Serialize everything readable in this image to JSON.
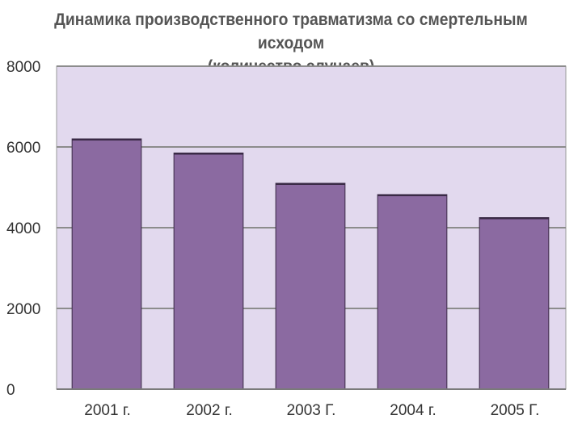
{
  "chart_data": {
    "type": "bar",
    "title": "Динамика производственного травматизма со смертельным исходом",
    "subtitle": "(количество случаев)",
    "categories": [
      "2001 г.",
      "2002 г.",
      "2003 Г.",
      "2004 г.",
      "2005 Г."
    ],
    "values": [
      6200,
      5850,
      5100,
      4820,
      4250
    ],
    "yticks": [
      "0",
      "2000",
      "4000",
      "6000",
      "8000"
    ],
    "ylim": [
      0,
      8000
    ],
    "grid": true,
    "colors": {
      "plot_background": "#e2d9ee",
      "bar_fill": "#8b6aa1",
      "bar_stroke": "#3a2a46",
      "gridline": "#8c8c8c",
      "text": "#333333"
    }
  }
}
